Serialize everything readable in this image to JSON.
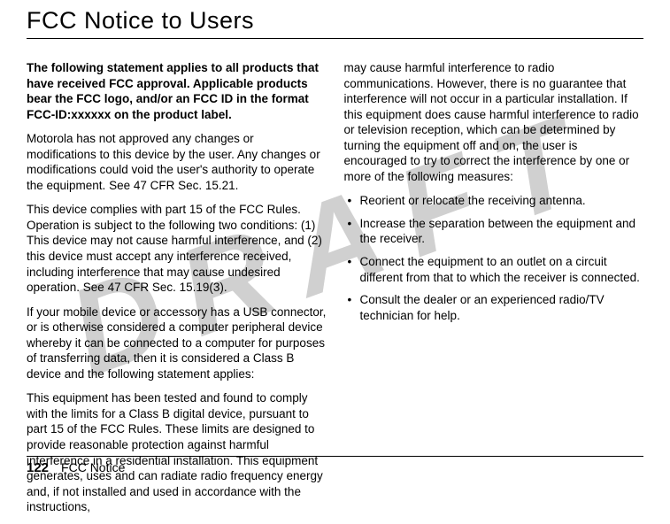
{
  "watermark": "DRAFT",
  "title": "FCC Notice to Users",
  "col1": {
    "p1_bold": "The following statement applies to all products that have received FCC approval. Applicable products bear the FCC logo, and/or an FCC ID in the format FCC-ID:xxxxxx on the product label.",
    "p2": "Motorola has not approved any changes or modifications to this device by the user. Any changes or modifications could void the user's authority to operate the equipment. See 47 CFR Sec. 15.21.",
    "p3": "This device complies with part 15 of the FCC Rules. Operation is subject to the following two conditions: (1) This device may not cause harmful interference, and (2) this device must accept any interference received, including interference that may cause undesired operation. See 47 CFR Sec. 15.19(3).",
    "p4": "If your mobile device or accessory has a USB connector, or is otherwise considered a computer peripheral device whereby it can be connected to a computer for purposes of transferring data, then it is considered a Class B device and the following statement applies:",
    "p5": "This equipment has been tested and found to comply with the limits for a Class B digital device, pursuant to part 15 of the FCC Rules. These limits are designed to provide reasonable protection against harmful interference in a residential installation. This equipment generates, uses and can radiate radio frequency energy and, if not installed and used in accordance with the instructions,"
  },
  "col2": {
    "p1": "may cause harmful interference to radio communications. However, there is no guarantee that interference will not occur in a particular installation. If this equipment does cause harmful interference to radio or television reception, which can be determined by turning the equipment off and on, the user is encouraged to try to correct the interference by one or more of the following measures:",
    "bullets": {
      "b1": "Reorient or relocate the receiving antenna.",
      "b2": "Increase the separation between the equipment and the receiver.",
      "b3": "Connect the equipment to an outlet on a circuit different from that to which the receiver is connected.",
      "b4": "Consult the dealer or an experienced radio/TV technician for help."
    }
  },
  "footer": {
    "page_num": "122",
    "label": "FCC Notice"
  },
  "colors": {
    "bg": "#ffffff",
    "text": "#000000",
    "watermark": "#d0d0d0",
    "rule": "#000000"
  }
}
